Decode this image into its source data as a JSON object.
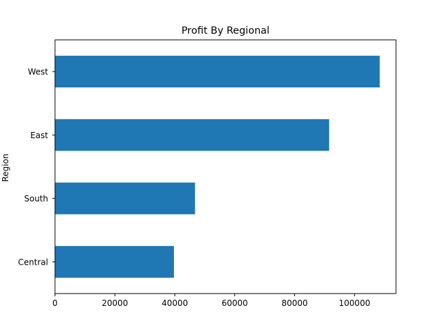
{
  "chart_data": {
    "type": "bar",
    "orientation": "horizontal",
    "title": "Profit By Regional",
    "xlabel": "",
    "ylabel": "Region",
    "categories": [
      "Central",
      "South",
      "East",
      "West"
    ],
    "values": [
      39706,
      46750,
      91523,
      108418
    ],
    "xlim": [
      0,
      113839
    ],
    "xticks": [
      0,
      20000,
      40000,
      60000,
      80000,
      100000
    ],
    "grid": false,
    "legend": "none",
    "bar_color": "#1f77b4"
  }
}
